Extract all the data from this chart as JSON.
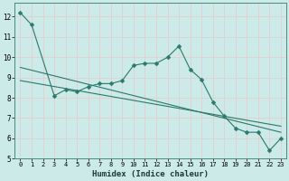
{
  "xlabel": "Humidex (Indice chaleur)",
  "ylabel": "",
  "bg_color": "#cceae8",
  "grid_color": "#b8d8d5",
  "line_color": "#2a7a6a",
  "xlim": [
    -0.5,
    23.5
  ],
  "ylim": [
    5,
    12.7
  ],
  "xticks": [
    0,
    1,
    2,
    3,
    4,
    5,
    6,
    7,
    8,
    9,
    10,
    11,
    12,
    13,
    14,
    15,
    16,
    17,
    18,
    19,
    20,
    21,
    22,
    23
  ],
  "yticks": [
    5,
    6,
    7,
    8,
    9,
    10,
    11,
    12
  ],
  "line1_x": [
    0,
    1,
    3,
    4,
    5,
    6,
    7,
    8,
    9,
    10,
    11,
    12,
    13,
    14,
    15,
    16,
    17,
    18,
    19,
    20,
    21,
    22,
    23
  ],
  "line1_y": [
    12.2,
    11.6,
    8.1,
    8.4,
    8.3,
    8.55,
    8.7,
    8.7,
    8.85,
    9.6,
    9.7,
    9.7,
    10.0,
    10.55,
    9.4,
    8.9,
    7.8,
    7.1,
    6.5,
    6.3,
    6.3,
    5.4,
    6.0
  ],
  "line2_x": [
    0,
    23
  ],
  "line2_y": [
    9.5,
    6.3
  ],
  "line3_x": [
    0,
    23
  ],
  "line3_y": [
    8.85,
    6.6
  ],
  "marker_size": 2.5
}
